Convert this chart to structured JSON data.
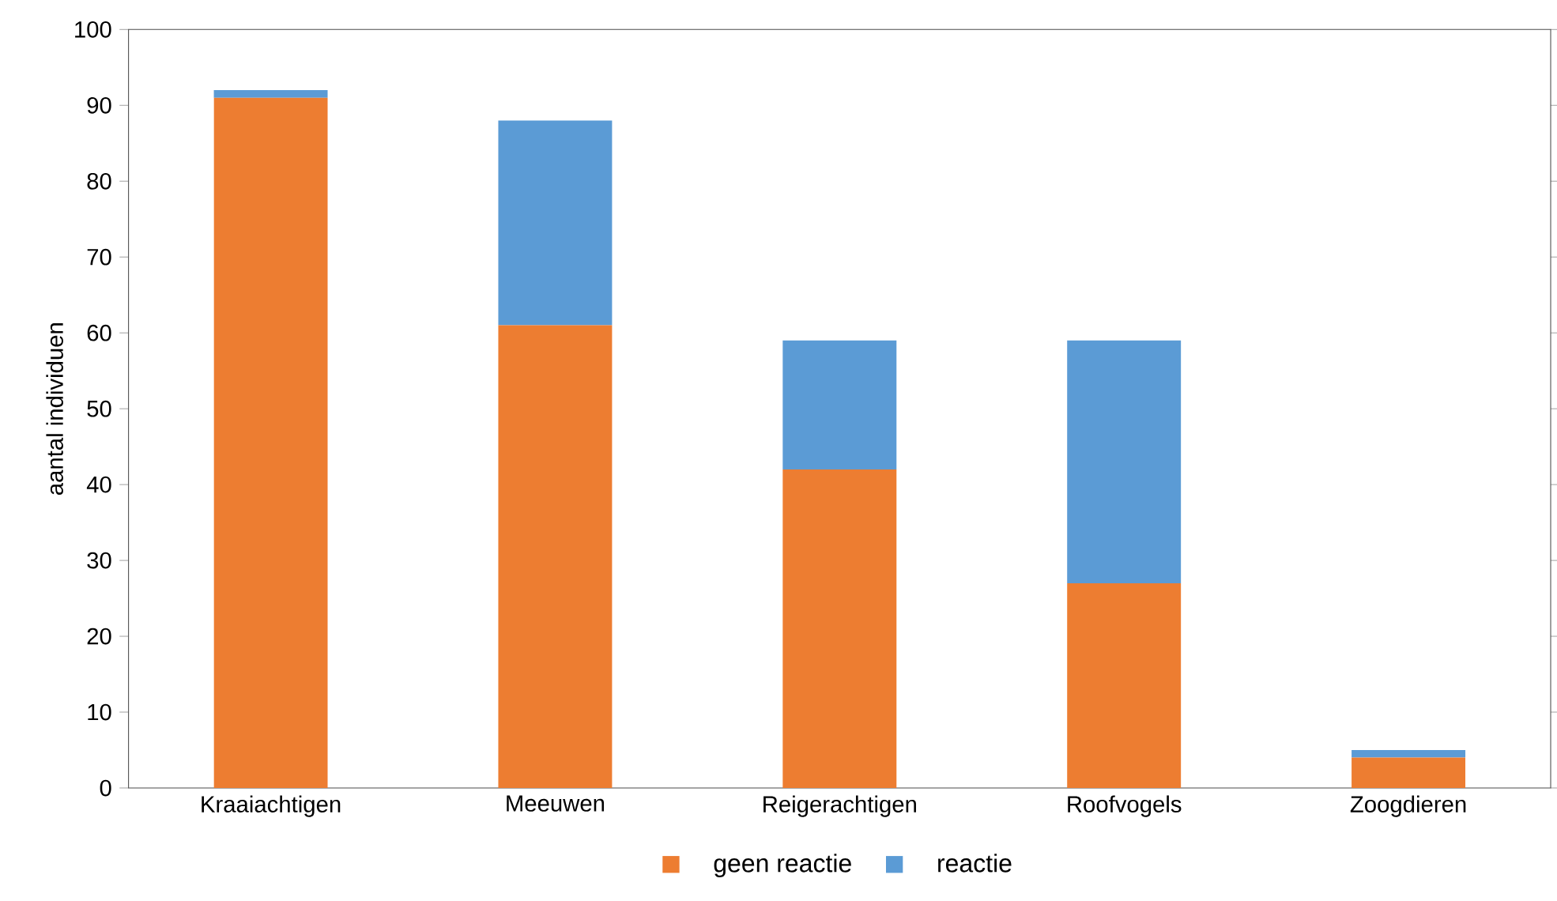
{
  "chart_data": {
    "type": "bar",
    "stacked": true,
    "ylabel": "aantal individuen",
    "categories": [
      "Kraaiachtigen",
      "Meeuwen",
      "Reigerachtigen",
      "Roofvogels",
      "Zoogdieren"
    ],
    "series": [
      {
        "name": "geen reactie",
        "color": "#ed7d31",
        "values": [
          91,
          61,
          42,
          27,
          4
        ]
      },
      {
        "name": "reactie",
        "color": "#5b9bd5",
        "values": [
          1,
          27,
          17,
          32,
          1
        ]
      }
    ],
    "ylim": [
      0,
      100
    ],
    "yticks": [
      0,
      10,
      20,
      30,
      40,
      50,
      60,
      70,
      80,
      90,
      100
    ],
    "grid": false,
    "legend": "bottom"
  }
}
